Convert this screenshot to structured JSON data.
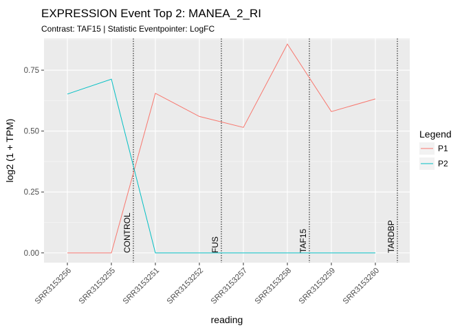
{
  "chart_data": {
    "type": "line",
    "title": "EXPRESSION Event Top 2: MANEA_2_RI",
    "subtitle": "Contrast: TAF15 | Statistic Eventpointer: LogFC",
    "xlabel": "reading",
    "ylabel": "log2 (1 + TPM)",
    "categories": [
      "SRR3153256",
      "SRR3153255",
      "SRR3153251",
      "SRR3153252",
      "SRR3153257",
      "SRR3153258",
      "SRR3153259",
      "SRR3153260"
    ],
    "y_ticks": [
      "0.00",
      "0.25",
      "0.50",
      "0.75"
    ],
    "ylim": [
      -0.04,
      0.88
    ],
    "grid": true,
    "legend_title": "Legend",
    "legend_position": "right",
    "series": [
      {
        "name": "P1",
        "color": "#F8766D",
        "values": [
          0.0,
          0.0,
          0.655,
          0.56,
          0.515,
          0.857,
          0.58,
          0.632
        ]
      },
      {
        "name": "P2",
        "color": "#00BFC4",
        "values": [
          0.652,
          0.713,
          0.0,
          0.0,
          0.0,
          0.0,
          0.0,
          0.0
        ]
      }
    ],
    "vlines": [
      {
        "label": "CONTROL",
        "x_after_index": 1
      },
      {
        "label": "FUS",
        "x_after_index": 3
      },
      {
        "label": "TAF15",
        "x_after_index": 5
      },
      {
        "label": "TARDBP",
        "x_after_index": 7
      }
    ]
  }
}
